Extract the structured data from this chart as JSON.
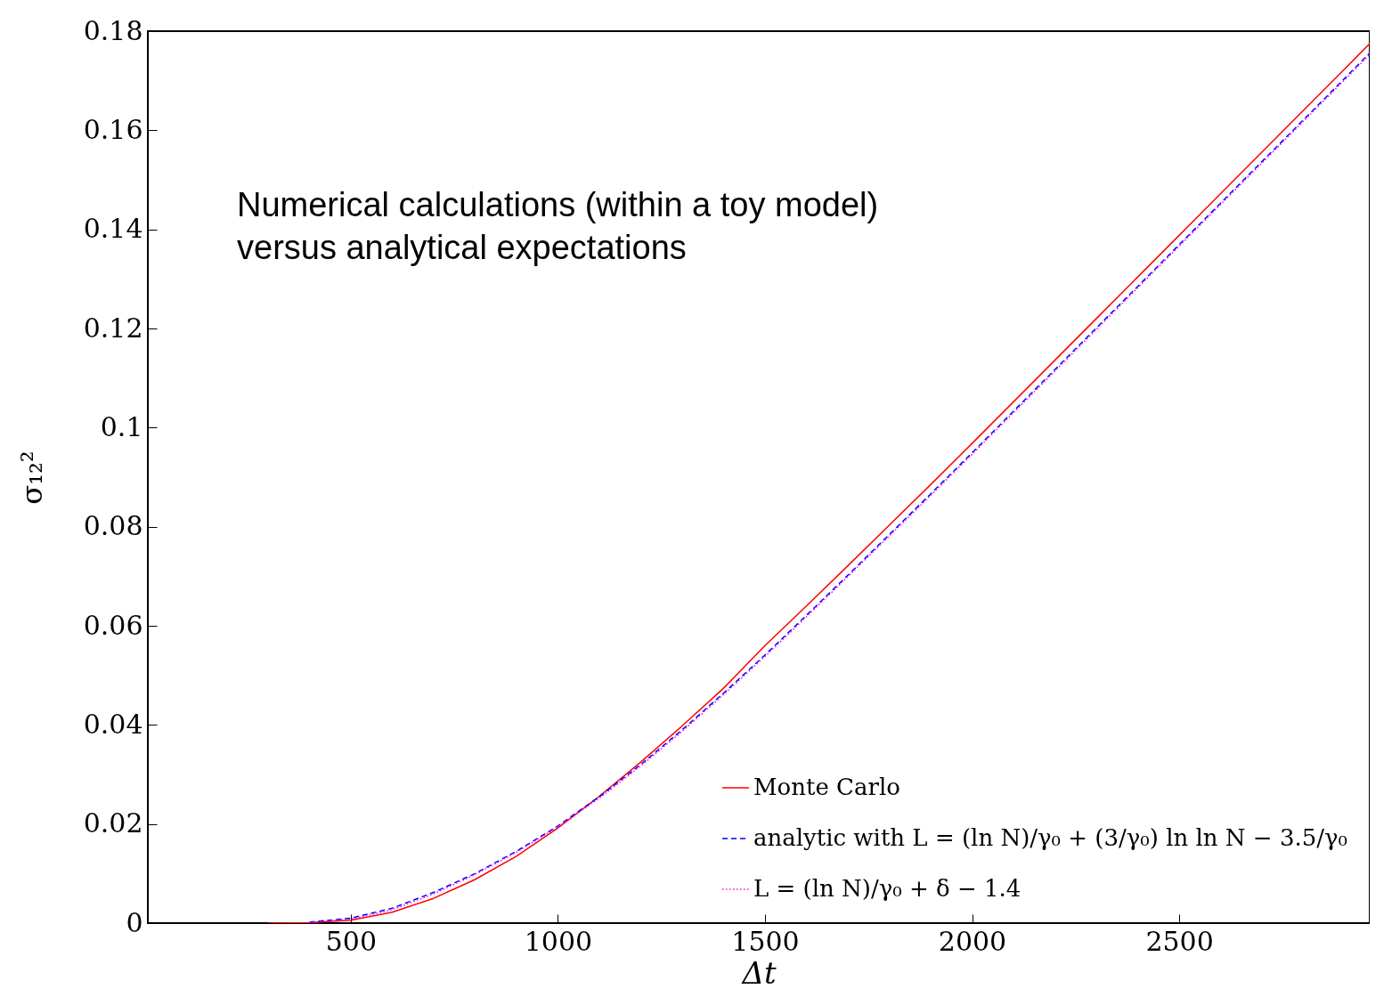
{
  "chart_data": {
    "type": "line",
    "xlabel": "Δt",
    "ylabel": "σ₁₂²",
    "xlim": [
      10,
      2960
    ],
    "ylim": [
      0,
      0.18
    ],
    "xticks": [
      500,
      1000,
      1500,
      2000,
      2500
    ],
    "yticks": [
      0,
      0.02,
      0.04,
      0.06,
      0.08,
      0.1,
      0.12,
      0.14,
      0.16,
      0.18
    ],
    "grid": false,
    "legend": "bottom right",
    "annotations": [
      "Numerical calculations (within a toy model)",
      "versus analytical expectations"
    ],
    "x": [
      300,
      400,
      500,
      600,
      700,
      800,
      900,
      1000,
      1100,
      1200,
      1300,
      1400,
      1500,
      1600,
      1700,
      1800,
      1900,
      2000,
      2100,
      2200,
      2300,
      2400,
      2500,
      2600,
      2700,
      2800,
      2900,
      2960
    ],
    "series": [
      {
        "name": "Monte Carlo",
        "color": "#ff0000",
        "line_style": "solid",
        "values": [
          0,
          0.0001,
          0.0006,
          0.0022,
          0.005,
          0.0088,
          0.0135,
          0.0192,
          0.0256,
          0.0325,
          0.0398,
          0.0474,
          0.056,
          0.064,
          0.0721,
          0.0803,
          0.0885,
          0.0968,
          0.1052,
          0.1136,
          0.122,
          0.1304,
          0.1388,
          0.1472,
          0.1556,
          0.164,
          0.1724,
          0.1775
        ]
      },
      {
        "name": "analytic with L = (ln N)/γ₀ + (3/γ₀) ln ln N − 3.5/γ₀",
        "color": "#0000ff",
        "line_style": "dashed",
        "values": [
          null,
          0.0002,
          0.001,
          0.003,
          0.0062,
          0.01,
          0.0145,
          0.0196,
          0.0255,
          0.032,
          0.039,
          0.0464,
          0.0541,
          0.0621,
          0.0702,
          0.0784,
          0.0866,
          0.0949,
          0.1033,
          0.1117,
          0.1201,
          0.1285,
          0.1369,
          0.1453,
          0.1537,
          0.1621,
          0.1705,
          0.1756
        ]
      },
      {
        "name": "L = (ln N)/γ₀ + δ − 1.4",
        "color": "#ff00ff",
        "line_style": "dotted",
        "values": [
          null,
          0.0001,
          0.0008,
          0.0027,
          0.0059,
          0.0098,
          0.0143,
          0.0194,
          0.0252,
          0.0317,
          0.0387,
          0.0461,
          0.0538,
          0.0618,
          0.0699,
          0.0781,
          0.0863,
          0.0946,
          0.103,
          0.1114,
          0.1198,
          0.1282,
          0.1366,
          0.145,
          0.1534,
          0.1618,
          0.1702,
          0.1753
        ]
      }
    ]
  }
}
